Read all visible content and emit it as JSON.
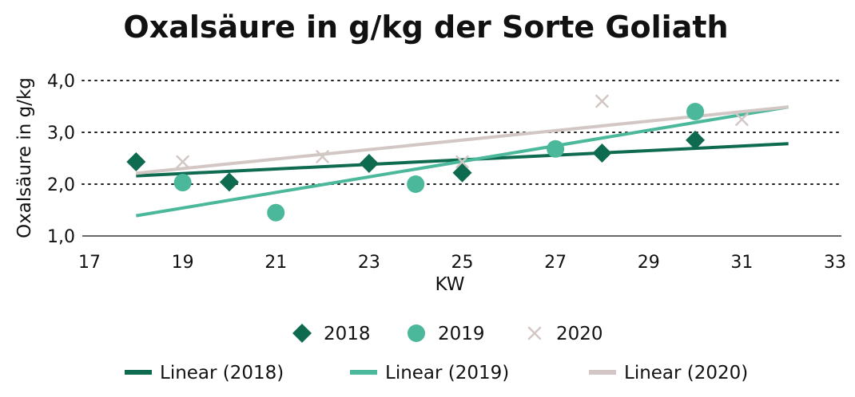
{
  "chart_data": {
    "type": "scatter",
    "title": "Oxalsäure in g/kg der Sorte Goliath",
    "xlabel": "KW",
    "ylabel": "Oxalsäure in g/kg",
    "xlim": [
      17,
      33
    ],
    "ylim": [
      1.0,
      4.0
    ],
    "xticks": [
      "17",
      "19",
      "21",
      "23",
      "25",
      "27",
      "29",
      "31",
      "33"
    ],
    "yticks": [
      "1,0",
      "2,0",
      "3,0",
      "4,0"
    ],
    "grid": "horizontal dotted",
    "legend_position": "bottom",
    "series": [
      {
        "name": "2018",
        "marker": "diamond",
        "color": "#0e6b4f",
        "x": [
          18,
          20,
          23,
          25,
          28,
          30
        ],
        "y": [
          2.43,
          2.04,
          2.4,
          2.22,
          2.6,
          2.85
        ]
      },
      {
        "name": "2019",
        "marker": "circle",
        "color": "#4cb89b",
        "x": [
          19,
          21,
          24,
          27,
          30
        ],
        "y": [
          2.03,
          1.45,
          2.0,
          2.68,
          3.4
        ]
      },
      {
        "name": "2020",
        "marker": "cross",
        "color": "#d2c7c4",
        "x": [
          19,
          22,
          25,
          28,
          31
        ],
        "y": [
          2.43,
          2.53,
          2.43,
          3.6,
          3.25
        ]
      }
    ],
    "trendlines": [
      {
        "name": "Linear (2018)",
        "color": "#0e6b4f",
        "x": [
          18,
          32
        ],
        "y": [
          2.16,
          2.78
        ]
      },
      {
        "name": "Linear (2019)",
        "color": "#4cb89b",
        "x": [
          18,
          32
        ],
        "y": [
          1.39,
          3.49
        ]
      },
      {
        "name": "Linear (2020)",
        "color": "#d2c7c4",
        "x": [
          18,
          32
        ],
        "y": [
          2.21,
          3.49
        ]
      }
    ]
  }
}
